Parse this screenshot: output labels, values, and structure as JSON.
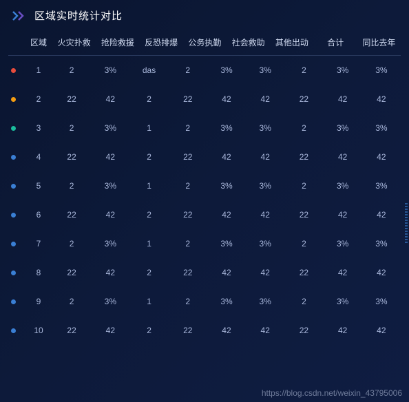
{
  "title": "区域实时统计对比",
  "headers": [
    "区域",
    "火灾扑救",
    "抢险救援",
    "反恐排爆",
    "公务执勤",
    "社会救助",
    "其他出动",
    "合计",
    "同比去年"
  ],
  "dot_colors": {
    "1": "#e74c3c",
    "2": "#f39c12",
    "3": "#1abc9c",
    "4": "#3a7fd4",
    "5": "#3a7fd4",
    "6": "#3a7fd4",
    "7": "#3a7fd4",
    "8": "#3a7fd4",
    "9": "#3a7fd4",
    "10": "#3a7fd4"
  },
  "rows": [
    {
      "id": "1",
      "cells": [
        "1",
        "2",
        "3%",
        "das",
        "2",
        "3%",
        "3%",
        "2",
        "3%",
        "3%"
      ]
    },
    {
      "id": "2",
      "cells": [
        "2",
        "22",
        "42",
        "2",
        "22",
        "42",
        "42",
        "22",
        "42",
        "42"
      ]
    },
    {
      "id": "3",
      "cells": [
        "3",
        "2",
        "3%",
        "1",
        "2",
        "3%",
        "3%",
        "2",
        "3%",
        "3%"
      ]
    },
    {
      "id": "4",
      "cells": [
        "4",
        "22",
        "42",
        "2",
        "22",
        "42",
        "42",
        "22",
        "42",
        "42"
      ]
    },
    {
      "id": "5",
      "cells": [
        "5",
        "2",
        "3%",
        "1",
        "2",
        "3%",
        "3%",
        "2",
        "3%",
        "3%"
      ]
    },
    {
      "id": "6",
      "cells": [
        "6",
        "22",
        "42",
        "2",
        "22",
        "42",
        "42",
        "22",
        "42",
        "42"
      ]
    },
    {
      "id": "7",
      "cells": [
        "7",
        "2",
        "3%",
        "1",
        "2",
        "3%",
        "3%",
        "2",
        "3%",
        "3%"
      ]
    },
    {
      "id": "8",
      "cells": [
        "8",
        "22",
        "42",
        "2",
        "22",
        "42",
        "42",
        "22",
        "42",
        "42"
      ]
    },
    {
      "id": "9",
      "cells": [
        "9",
        "2",
        "3%",
        "1",
        "2",
        "3%",
        "3%",
        "2",
        "3%",
        "3%"
      ]
    },
    {
      "id": "10",
      "cells": [
        "10",
        "22",
        "42",
        "2",
        "22",
        "42",
        "42",
        "22",
        "42",
        "42"
      ]
    }
  ],
  "watermark": "https://blog.csdn.net/weixin_43795006",
  "colors": {
    "background_start": "#0a1530",
    "background_end": "#0f1d42",
    "text_primary": "#c8d4f0",
    "text_header": "#d0daf0",
    "text_title": "#ffffff",
    "border": "#2a3a5f",
    "chevron_blue": "#3a7fd4",
    "chevron_purple": "#6a4fc4"
  }
}
